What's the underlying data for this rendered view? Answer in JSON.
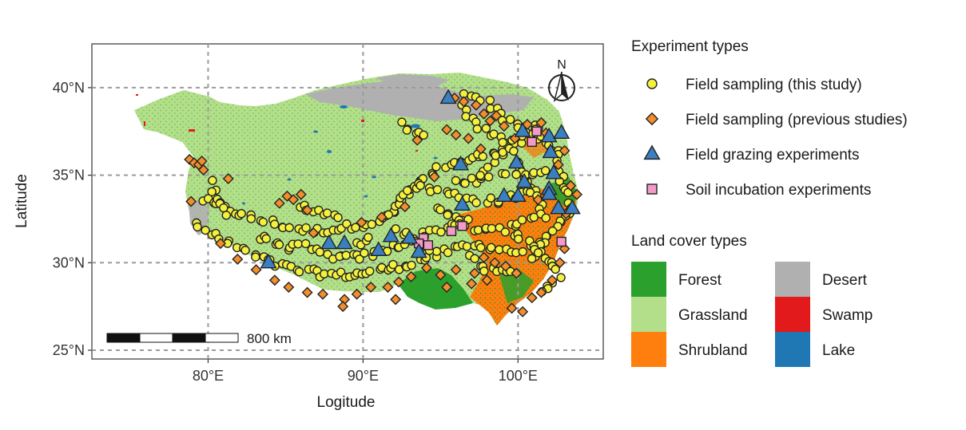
{
  "chart_data": {
    "type": "map",
    "xlabel": "Logitude",
    "ylabel": "Latitude",
    "xlim": [
      72.5,
      105.5
    ],
    "ylim": [
      24.5,
      42.5
    ],
    "x_ticks": [
      {
        "value": 80,
        "label": "80°E"
      },
      {
        "value": 90,
        "label": "90°E"
      },
      {
        "value": 100,
        "label": "100°E"
      }
    ],
    "y_ticks": [
      {
        "value": 25,
        "label": "25°N"
      },
      {
        "value": 30,
        "label": "30°N"
      },
      {
        "value": 35,
        "label": "35°N"
      },
      {
        "value": 40,
        "label": "40°N"
      }
    ],
    "grid": true,
    "north_arrow_label": "N",
    "scale_bar_label": "800 km",
    "legends": {
      "experiment_title": "Experiment types",
      "experiment_types": [
        {
          "name": "Field sampling (this study)",
          "shape": "circle",
          "color": "#f3f03e"
        },
        {
          "name": "Field sampling (previous studies)",
          "shape": "diamond",
          "color": "#f28e2b"
        },
        {
          "name": "Field grazing experiments",
          "shape": "triangle",
          "color": "#3a7fc1"
        },
        {
          "name": "Soil incubation experiments",
          "shape": "square",
          "color": "#f49ac8"
        }
      ],
      "landcover_title": "Land cover types",
      "landcover_types": [
        {
          "name": "Forest",
          "color": "#2ca02c"
        },
        {
          "name": "Grassland",
          "color": "#b3df8a"
        },
        {
          "name": "Shrubland",
          "color": "#ff7f0e"
        },
        {
          "name": "Desert",
          "color": "#b0b0b0"
        },
        {
          "name": "Swamp",
          "color": "#e31a1c"
        },
        {
          "name": "Lake",
          "color": "#1f78b4"
        }
      ]
    },
    "grazing_sites": [
      [
        95.5,
        39.4
      ],
      [
        100.3,
        37.5
      ],
      [
        102.0,
        37.2
      ],
      [
        102.8,
        37.4
      ],
      [
        96.3,
        35.6
      ],
      [
        99.9,
        35.7
      ],
      [
        100.4,
        34.6
      ],
      [
        102.1,
        36.3
      ],
      [
        102.3,
        35.1
      ],
      [
        102.0,
        34.2
      ],
      [
        102.6,
        33.1
      ],
      [
        103.5,
        33.1
      ],
      [
        96.4,
        33.3
      ],
      [
        99.1,
        33.8
      ],
      [
        100.0,
        33.8
      ],
      [
        102.0,
        33.9
      ],
      [
        87.8,
        31.1
      ],
      [
        88.8,
        31.1
      ],
      [
        91.8,
        31.5
      ],
      [
        93.0,
        31.4
      ],
      [
        91.0,
        30.7
      ],
      [
        93.6,
        30.6
      ],
      [
        83.9,
        30.0
      ]
    ],
    "incubation_sites": [
      [
        101.2,
        37.5
      ],
      [
        100.9,
        36.9
      ],
      [
        96.4,
        32.1
      ],
      [
        95.7,
        31.8
      ],
      [
        93.9,
        31.4
      ],
      [
        93.6,
        31.1
      ],
      [
        94.2,
        31.0
      ],
      [
        102.8,
        31.2
      ]
    ],
    "previous_study_sites": [
      [
        78.8,
        35.9
      ],
      [
        79.1,
        35.7
      ],
      [
        79.4,
        35.6
      ],
      [
        79.6,
        35.8
      ],
      [
        79.7,
        35.3
      ],
      [
        81.3,
        34.8
      ],
      [
        78.9,
        33.5
      ],
      [
        85.1,
        33.8
      ],
      [
        85.5,
        33.6
      ],
      [
        86.0,
        33.9
      ],
      [
        84.6,
        33.4
      ],
      [
        86.4,
        33.0
      ],
      [
        95.9,
        39.4
      ],
      [
        96.5,
        39.2
      ],
      [
        97.3,
        39.0
      ],
      [
        97.8,
        38.5
      ],
      [
        98.2,
        38.1
      ],
      [
        98.6,
        38.4
      ],
      [
        99.1,
        37.8
      ],
      [
        95.4,
        37.6
      ],
      [
        96.0,
        37.3
      ],
      [
        96.8,
        37.1
      ],
      [
        93.5,
        37.0
      ],
      [
        99.8,
        37.1
      ],
      [
        100.6,
        37.9
      ],
      [
        101.5,
        38.0
      ],
      [
        101.8,
        37.4
      ],
      [
        103.0,
        36.4
      ],
      [
        102.6,
        35.6
      ],
      [
        103.4,
        34.4
      ],
      [
        103.8,
        33.9
      ],
      [
        101.3,
        33.6
      ],
      [
        103.1,
        32.8
      ],
      [
        97.8,
        30.3
      ],
      [
        98.5,
        30.0
      ],
      [
        99.2,
        29.8
      ],
      [
        99.9,
        29.4
      ],
      [
        98.0,
        29.0
      ],
      [
        97.2,
        29.4
      ],
      [
        96.0,
        29.6
      ],
      [
        95.0,
        29.3
      ],
      [
        94.1,
        29.7
      ],
      [
        93.1,
        29.2
      ],
      [
        92.3,
        28.9
      ],
      [
        91.6,
        28.6
      ],
      [
        90.5,
        28.6
      ],
      [
        89.6,
        28.2
      ],
      [
        88.8,
        27.9
      ],
      [
        88.7,
        27.5
      ],
      [
        87.4,
        28.2
      ],
      [
        86.4,
        28.3
      ],
      [
        85.2,
        28.6
      ],
      [
        84.3,
        29.0
      ],
      [
        83.1,
        29.6
      ],
      [
        81.9,
        30.2
      ],
      [
        80.8,
        31.1
      ],
      [
        99.6,
        27.4
      ],
      [
        100.3,
        27.2
      ],
      [
        100.9,
        28.0
      ],
      [
        101.5,
        28.3
      ],
      [
        102.2,
        29.0
      ],
      [
        102.7,
        30.0
      ],
      [
        103.0,
        30.8
      ],
      [
        92.1,
        27.9
      ],
      [
        97.0,
        28.8
      ],
      [
        95.4,
        28.6
      ],
      [
        86.8,
        31.7
      ],
      [
        89.9,
        32.3
      ],
      [
        91.2,
        32.6
      ],
      [
        92.7,
        33.2
      ],
      [
        94.6,
        34.9
      ],
      [
        97.6,
        36.5
      ]
    ]
  }
}
